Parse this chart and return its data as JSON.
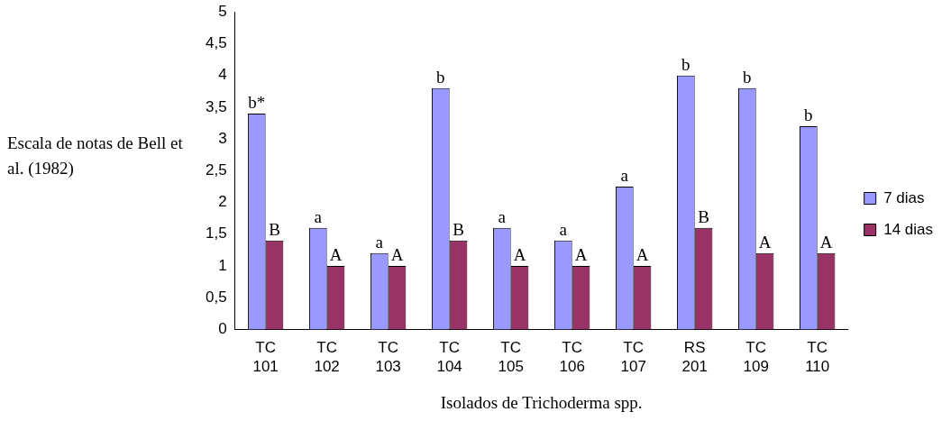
{
  "chart_data": {
    "type": "bar",
    "xlabel": "Isolados de Trichoderma spp.",
    "ylabel": "Escala de notas de Bell et al. (1982)",
    "categories": [
      "TC 101",
      "TC 102",
      "TC 103",
      "TC 104",
      "TC 105",
      "TC 106",
      "TC 107",
      "RS 201",
      "TC 109",
      "TC 110"
    ],
    "series": [
      {
        "name": "7 dias",
        "color": "#9999ff",
        "values": [
          3.4,
          1.6,
          1.2,
          3.8,
          1.6,
          1.4,
          2.25,
          4.0,
          3.8,
          3.2
        ]
      },
      {
        "name": "14 dias",
        "color": "#993366",
        "values": [
          1.4,
          1.0,
          1.0,
          1.4,
          1.0,
          1.0,
          1.0,
          1.6,
          1.2,
          1.2
        ]
      }
    ],
    "ylim": [
      0,
      5
    ],
    "yticks": [
      0,
      {
        "value": 0.5,
        "label": "0,5"
      },
      1,
      {
        "value": 1.5,
        "label": "1,5"
      },
      2,
      {
        "value": 2.5,
        "label": "2,5"
      },
      3,
      {
        "value": 3.5,
        "label": "3,5"
      },
      4,
      {
        "value": 4.5,
        "label": "4,5"
      },
      5
    ],
    "grid": false,
    "legend": "right",
    "annotations": [
      {
        "text": "b*",
        "x": "TC 101",
        "y": 3.4
      },
      {
        "text": "B",
        "x": "TC 101",
        "y": 1.4
      },
      {
        "text": "a",
        "x": "TC 102",
        "y": 1.6
      },
      {
        "text": "A",
        "x": "TC 102",
        "y": 1.0
      },
      {
        "text": "a",
        "x": "TC 103",
        "y": 1.2
      },
      {
        "text": "A",
        "x": "TC 103",
        "y": 1.0
      },
      {
        "text": "b",
        "x": "TC 104",
        "y": 3.8
      },
      {
        "text": "B",
        "x": "TC 104",
        "y": 1.4
      },
      {
        "text": "a",
        "x": "TC 105",
        "y": 1.6
      },
      {
        "text": "A",
        "x": "TC 105",
        "y": 1.0
      },
      {
        "text": "a",
        "x": "TC 106",
        "y": 1.4
      },
      {
        "text": "A",
        "x": "TC 106",
        "y": 1.0
      },
      {
        "text": "a",
        "x": "TC 107",
        "y": 2.25
      },
      {
        "text": "A",
        "x": "TC 107",
        "y": 1.0
      },
      {
        "text": "b",
        "x": "RS 201",
        "y": 4.0
      },
      {
        "text": "B",
        "x": "RS 201",
        "y": 1.6
      },
      {
        "text": "b",
        "x": "TC 109",
        "y": 3.8
      },
      {
        "text": "A",
        "x": "TC 109",
        "y": 1.2
      },
      {
        "text": "b",
        "x": "TC 110",
        "y": 3.2
      },
      {
        "text": "A",
        "x": "TC 110",
        "y": 1.2
      }
    ]
  }
}
